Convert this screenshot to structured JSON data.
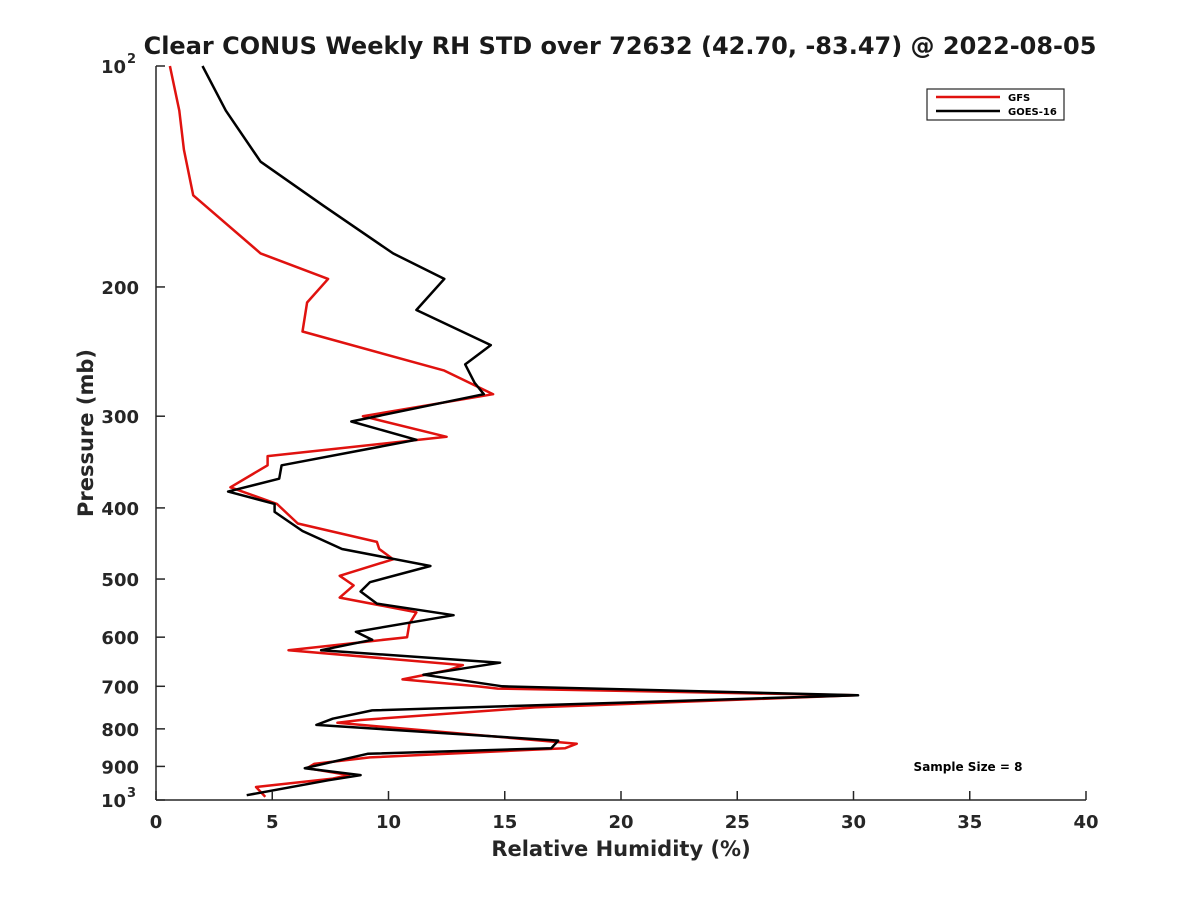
{
  "chart_data": {
    "type": "line",
    "title": "Clear CONUS Weekly RH STD over 72632 (42.70, -83.47) @ 2022-08-05",
    "xlabel": "Relative Humidity (%)",
    "ylabel": "Pressure (mb)",
    "xlim": [
      0,
      40
    ],
    "ylim": [
      100,
      1000
    ],
    "y_scale": "log",
    "y_reversed": true,
    "x_ticks": [
      "0",
      "5",
      "10",
      "15",
      "20",
      "25",
      "30",
      "35",
      "40"
    ],
    "y_ticks": [
      {
        "value": 100,
        "base": "10",
        "exp": "2"
      },
      {
        "value": 200,
        "label": "200"
      },
      {
        "value": 300,
        "label": "300"
      },
      {
        "value": 400,
        "label": "400"
      },
      {
        "value": 500,
        "label": "500"
      },
      {
        "value": 600,
        "label": "600"
      },
      {
        "value": 700,
        "label": "700"
      },
      {
        "value": 800,
        "label": "800"
      },
      {
        "value": 900,
        "label": "900"
      },
      {
        "value": 1000,
        "base": "10",
        "exp": "3"
      }
    ],
    "grid": false,
    "legend_position": "top-right",
    "annotation": "Sample Size = 8",
    "series": [
      {
        "name": "GFS",
        "color": "#e0120f",
        "points": [
          [
            0.6,
            100
          ],
          [
            1.0,
            115
          ],
          [
            1.2,
            130
          ],
          [
            1.6,
            150
          ],
          [
            4.5,
            180
          ],
          [
            7.4,
            195
          ],
          [
            6.5,
            210
          ],
          [
            6.3,
            230
          ],
          [
            12.4,
            260
          ],
          [
            14.5,
            280
          ],
          [
            8.9,
            300
          ],
          [
            12.5,
            320
          ],
          [
            4.8,
            340
          ],
          [
            4.8,
            350
          ],
          [
            3.2,
            375
          ],
          [
            5.2,
            395
          ],
          [
            6.1,
            420
          ],
          [
            9.5,
            445
          ],
          [
            9.6,
            455
          ],
          [
            10.2,
            470
          ],
          [
            7.9,
            495
          ],
          [
            8.5,
            510
          ],
          [
            7.9,
            530
          ],
          [
            11.2,
            555
          ],
          [
            10.9,
            575
          ],
          [
            10.8,
            600
          ],
          [
            5.7,
            625
          ],
          [
            13.2,
            655
          ],
          [
            12.6,
            665
          ],
          [
            10.6,
            685
          ],
          [
            13.8,
            700
          ],
          [
            14.7,
            705
          ],
          [
            30.1,
            720
          ],
          [
            16.3,
            748
          ],
          [
            8.8,
            778
          ],
          [
            7.8,
            785
          ],
          [
            18.1,
            838
          ],
          [
            17.6,
            850
          ],
          [
            9.2,
            875
          ],
          [
            6.8,
            893
          ],
          [
            6.5,
            905
          ],
          [
            8.3,
            925
          ],
          [
            7.6,
            935
          ],
          [
            4.3,
            960
          ],
          [
            4.7,
            990
          ]
        ]
      },
      {
        "name": "GOES-16",
        "color": "#000000",
        "points": [
          [
            2.0,
            100
          ],
          [
            3.0,
            115
          ],
          [
            4.5,
            135
          ],
          [
            7.2,
            155
          ],
          [
            10.2,
            180
          ],
          [
            12.4,
            195
          ],
          [
            11.2,
            215
          ],
          [
            14.4,
            240
          ],
          [
            13.3,
            255
          ],
          [
            13.7,
            270
          ],
          [
            14.1,
            280
          ],
          [
            8.4,
            305
          ],
          [
            11.2,
            323
          ],
          [
            5.4,
            350
          ],
          [
            5.3,
            365
          ],
          [
            3.1,
            380
          ],
          [
            5.1,
            395
          ],
          [
            5.1,
            405
          ],
          [
            6.3,
            430
          ],
          [
            8.0,
            455
          ],
          [
            11.8,
            480
          ],
          [
            9.2,
            505
          ],
          [
            8.8,
            520
          ],
          [
            9.5,
            540
          ],
          [
            12.8,
            560
          ],
          [
            8.6,
            590
          ],
          [
            9.3,
            605
          ],
          [
            7.1,
            625
          ],
          [
            14.8,
            650
          ],
          [
            11.5,
            675
          ],
          [
            14.9,
            700
          ],
          [
            30.2,
            720
          ],
          [
            9.3,
            755
          ],
          [
            7.6,
            775
          ],
          [
            6.9,
            790
          ],
          [
            17.3,
            830
          ],
          [
            17.0,
            850
          ],
          [
            9.1,
            865
          ],
          [
            6.4,
            905
          ],
          [
            8.8,
            925
          ],
          [
            7.4,
            940
          ],
          [
            3.9,
            985
          ]
        ]
      }
    ]
  }
}
